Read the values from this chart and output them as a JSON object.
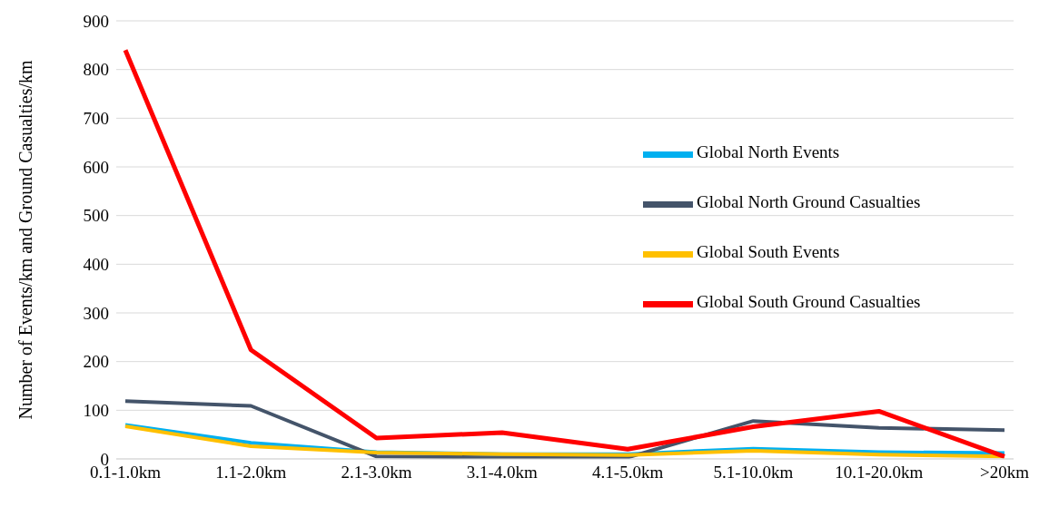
{
  "chart_data": {
    "type": "line",
    "ylabel": "Number of Events/km and Ground Casualties/km",
    "categories": [
      "0.1-1.0km",
      "1.1-2.0km",
      "2.1-3.0km",
      "3.1-4.0km",
      "4.1-5.0km",
      "5.1-10.0km",
      "10.1-20.0km",
      ">20km"
    ],
    "series": [
      {
        "name": "Global North Events",
        "color": "#00b0f0",
        "values": [
          70,
          33,
          14,
          10,
          10,
          21,
          14,
          12
        ]
      },
      {
        "name": "Global North Ground Casualties",
        "color": "#44546a",
        "values": [
          119,
          109,
          5,
          3,
          3,
          78,
          64,
          59
        ]
      },
      {
        "name": "Global South Events",
        "color": "#ffc000",
        "values": [
          67,
          26,
          13,
          10,
          8,
          17,
          9,
          5
        ]
      },
      {
        "name": "Global South Ground Casualties",
        "color": "#ff0000",
        "values": [
          840,
          224,
          43,
          54,
          20,
          66,
          98,
          5
        ]
      }
    ],
    "ylim": [
      0,
      900
    ],
    "yticks": [
      0,
      100,
      200,
      300,
      400,
      500,
      600,
      700,
      800,
      900
    ],
    "grid": "y",
    "legend": "right",
    "marker": "none",
    "line_style": "solid"
  }
}
